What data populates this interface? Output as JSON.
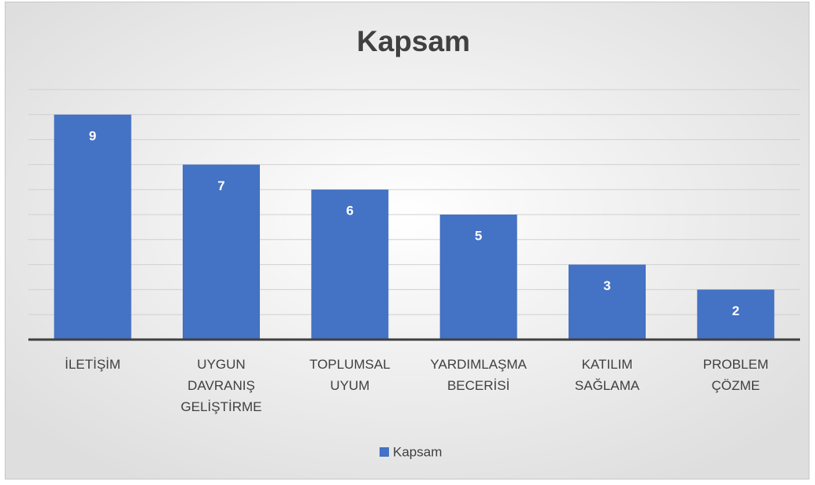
{
  "chart_data": {
    "type": "bar",
    "title": "Kapsam",
    "categories": [
      "İLETİŞİM",
      "UYGUN DAVRANIŞ GELİŞTİRME",
      "TOPLUMSAL UYUM",
      "YARDIMLAŞMA BECERİSİ",
      "KATILIM SAĞLAMA",
      "PROBLEM ÇÖZME"
    ],
    "series": [
      {
        "name": "Kapsam",
        "color": "#4472c4",
        "values": [
          9,
          7,
          6,
          5,
          3,
          2
        ]
      }
    ],
    "ylim": [
      0,
      10
    ],
    "yticks": [
      0,
      1,
      2,
      3,
      4,
      5,
      6,
      7,
      8,
      9,
      10
    ],
    "grid": true,
    "legend": "bottom"
  }
}
